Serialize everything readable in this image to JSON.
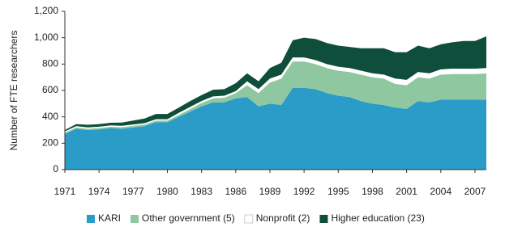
{
  "chart_data": {
    "type": "stacked-area",
    "y_label": "Number of FTE researchers",
    "x": [
      1971,
      1972,
      1973,
      1974,
      1975,
      1976,
      1977,
      1978,
      1979,
      1980,
      1981,
      1982,
      1983,
      1984,
      1985,
      1986,
      1987,
      1988,
      1989,
      1990,
      1991,
      1992,
      1993,
      1994,
      1995,
      1996,
      1997,
      1998,
      1999,
      2000,
      2001,
      2002,
      2003,
      2004,
      2005,
      2006,
      2007,
      2008
    ],
    "series": [
      {
        "name": "KARI",
        "color": "#2b9bc8",
        "values": [
          270,
          310,
          300,
          305,
          315,
          310,
          320,
          330,
          360,
          360,
          400,
          440,
          480,
          510,
          510,
          540,
          550,
          480,
          500,
          490,
          620,
          620,
          610,
          580,
          560,
          550,
          520,
          500,
          490,
          470,
          460,
          520,
          510,
          530,
          530,
          530,
          530,
          530
        ]
      },
      {
        "name": "Other government (5)",
        "color": "#8fc8a0",
        "values": [
          10,
          10,
          10,
          10,
          10,
          12,
          12,
          12,
          12,
          12,
          15,
          20,
          25,
          30,
          35,
          40,
          90,
          100,
          160,
          200,
          200,
          200,
          190,
          190,
          190,
          190,
          200,
          200,
          200,
          180,
          180,
          180,
          180,
          190,
          195,
          195,
          195,
          200
        ]
      },
      {
        "name": "Nonprofit (2)",
        "color": "#ffffff",
        "values": [
          10,
          10,
          10,
          10,
          10,
          10,
          10,
          10,
          10,
          10,
          15,
          15,
          15,
          15,
          15,
          15,
          30,
          30,
          30,
          30,
          30,
          30,
          30,
          30,
          30,
          30,
          30,
          30,
          30,
          40,
          40,
          40,
          40,
          40,
          40,
          40,
          40,
          40
        ]
      },
      {
        "name": "Higher education (23)",
        "color": "#0f4e3a",
        "values": [
          10,
          15,
          20,
          20,
          20,
          25,
          30,
          35,
          40,
          40,
          40,
          45,
          45,
          50,
          50,
          60,
          60,
          60,
          80,
          90,
          130,
          150,
          160,
          160,
          160,
          160,
          170,
          190,
          200,
          200,
          210,
          200,
          190,
          190,
          200,
          210,
          210,
          240
        ]
      }
    ],
    "xlim": [
      1971,
      2008
    ],
    "xticks": [
      1971,
      1974,
      1977,
      1980,
      1983,
      1986,
      1989,
      1992,
      1995,
      1998,
      2001,
      2004,
      2007
    ],
    "ylim": [
      0,
      1200
    ],
    "yticks": [
      0,
      200,
      400,
      600,
      800,
      {
        "value": 1000,
        "label": "1,000"
      },
      {
        "value": 1200,
        "label": "1,200"
      }
    ],
    "legend": "bottom"
  }
}
